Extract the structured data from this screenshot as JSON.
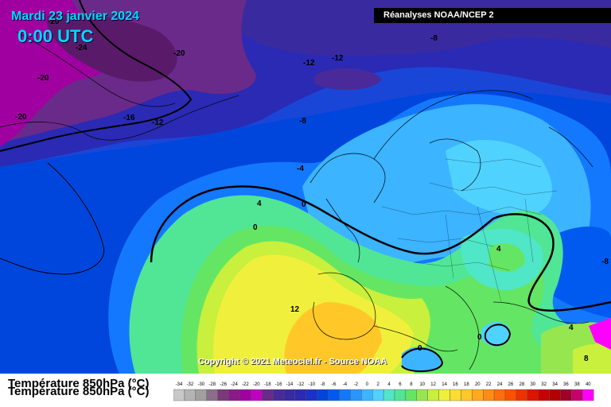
{
  "header": {
    "date": "Mardi 23 janvier 2024",
    "time": "0:00 UTC",
    "source": "Réanalyses NOAA/NCEP 2"
  },
  "map": {
    "copyright": "Copyright © 2021 Meteociel.fr - Source NOAA",
    "contour_labels": [
      "-20",
      "-24",
      "-20",
      "-20",
      "-20",
      "-16",
      "-12",
      "-12",
      "-12",
      "-8",
      "-8",
      "-4",
      "0",
      "4",
      "0",
      "4",
      "12",
      "0",
      "0",
      "4",
      "8",
      "-8"
    ]
  },
  "legend": {
    "variable": "Température 850hPa (°C)",
    "scale_labels": [
      "-34",
      "-32",
      "-30",
      "-28",
      "-26",
      "-24",
      "-22",
      "-20",
      "-18",
      "-16",
      "-14",
      "-12",
      "-10",
      "-8",
      "-6",
      "-4",
      "-2",
      "0",
      "2",
      "4",
      "6",
      "8",
      "10",
      "12",
      "14",
      "16",
      "18",
      "20",
      "22",
      "24",
      "26",
      "28",
      "30",
      "32",
      "34",
      "36",
      "38",
      "40"
    ],
    "scale_colors": [
      "#c8c8c8",
      "#b4b4b4",
      "#a0a0a0",
      "#8c6e8c",
      "#7a3a7a",
      "#8a1a8a",
      "#a000a0",
      "#c000c0",
      "#6a2a8a",
      "#4a2a9a",
      "#3a2aa0",
      "#2a2ab4",
      "#1a32c8",
      "#0046dc",
      "#005af0",
      "#1478ff",
      "#2896ff",
      "#3cb4ff",
      "#50d2ff",
      "#50e6c8",
      "#50e696",
      "#64e664",
      "#96e650",
      "#c8f03c",
      "#f0f03c",
      "#ffdc32",
      "#ffc828",
      "#ffaa1e",
      "#ff8c14",
      "#ff6e0a",
      "#ff5000",
      "#f03200",
      "#dc1400",
      "#c80000",
      "#b40000",
      "#a00028",
      "#c8006e",
      "#ff00ff"
    ]
  }
}
